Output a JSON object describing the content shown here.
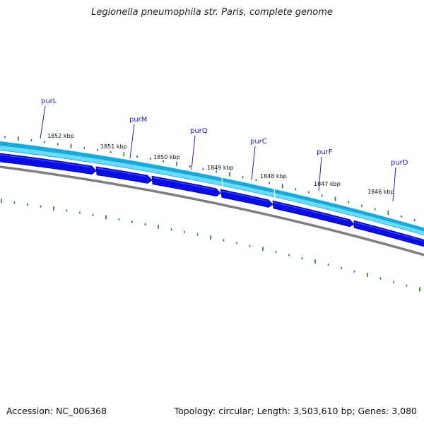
{
  "map": {
    "title": "Legionella pneumophila str. Paris, complete genome",
    "accession": "Accession: NC_006368",
    "topology": "Topology: circular; Length: 3,503,610 bp; Genes: 3,080"
  },
  "genes": [
    {
      "name": "purL"
    },
    {
      "name": "purM"
    },
    {
      "name": "purQ"
    },
    {
      "name": "purC"
    },
    {
      "name": "purF"
    },
    {
      "name": "purD"
    }
  ],
  "scale_labels": [
    "1852 kbp",
    "1851 kbp",
    "1850 kbp",
    "1849 kbp",
    "1848 kbp",
    "1847 kbp",
    "1846 kbp"
  ],
  "colors": {
    "background": "#ffffff",
    "backbone": "#7f7f7f",
    "outer_band": "#1aa7d9",
    "inner_band": "#66dcff",
    "cds_arrow": "#0a0ee6",
    "cds_arrow_dark": "#0000a8",
    "tick": "#1f7a1f",
    "gene_label": "#1c1cc8",
    "scale_label": "#111111"
  }
}
